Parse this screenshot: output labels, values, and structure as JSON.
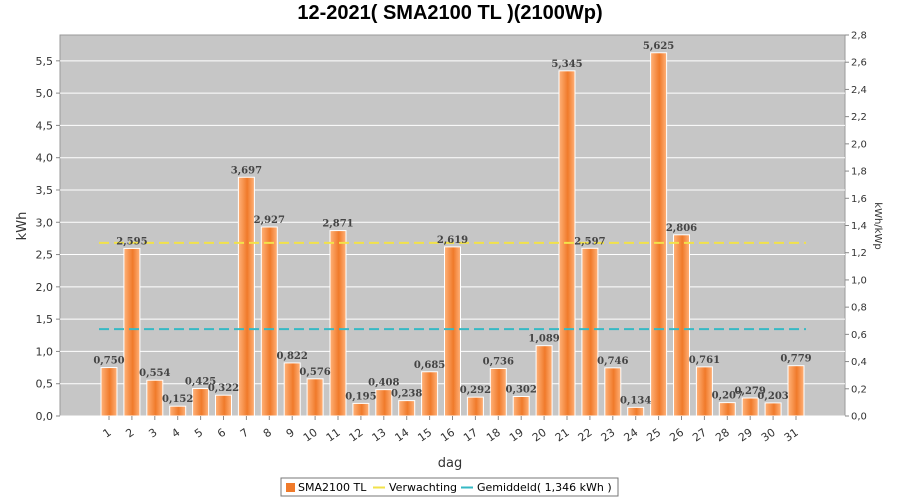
{
  "chart_data": {
    "type": "bar",
    "title": "12-2021( SMA2100 TL )(2100Wp)",
    "xlabel": "dag",
    "ylabel": "kWh",
    "y2label": "kWh/kWp",
    "ylim": [
      0,
      5.9
    ],
    "y2lim": [
      0,
      2.8
    ],
    "yticks": [
      "0,0",
      "0,5",
      "1,0",
      "1,5",
      "2,0",
      "2,5",
      "3,0",
      "3,5",
      "4,0",
      "4,5",
      "5,0",
      "5,5"
    ],
    "y2ticks": [
      "0,0",
      "0,2",
      "0,4",
      "0,6",
      "0,8",
      "1,0",
      "1,2",
      "1,4",
      "1,6",
      "1,8",
      "2,0",
      "2,2",
      "2,4",
      "2,6",
      "2,8"
    ],
    "categories": [
      "1",
      "2",
      "3",
      "4",
      "5",
      "6",
      "7",
      "8",
      "9",
      "10",
      "11",
      "12",
      "13",
      "14",
      "15",
      "16",
      "17",
      "18",
      "19",
      "20",
      "21",
      "22",
      "23",
      "24",
      "25",
      "26",
      "27",
      "28",
      "29",
      "30",
      "31"
    ],
    "series": [
      {
        "name": "SMA2100 TL",
        "values": [
          0.75,
          2.595,
          0.554,
          0.152,
          0.425,
          0.322,
          3.697,
          2.927,
          0.822,
          0.576,
          2.871,
          0.195,
          0.408,
          0.238,
          0.685,
          2.619,
          0.292,
          0.736,
          0.302,
          1.089,
          5.345,
          2.597,
          0.746,
          0.134,
          5.625,
          2.806,
          0.761,
          0.207,
          0.279,
          0.203,
          0.779
        ],
        "labels": [
          "0,750",
          "2,595",
          "0,554",
          "0,152",
          "0,425",
          "0,322",
          "3,697",
          "2,927",
          "0,822",
          "0,576",
          "2,871",
          "0,195",
          "0,408",
          "0,238",
          "0,685",
          "2,619",
          "0,292",
          "0,736",
          "0,302",
          "1,089",
          "5,345",
          "2,597",
          "0,746",
          "0,134",
          "5,625",
          "2,806",
          "0,761",
          "0,207",
          "0,279",
          "0,203",
          "0,779"
        ]
      }
    ],
    "lines": [
      {
        "name": "Verwachting",
        "value": 2.68,
        "color": "#f2e24a"
      },
      {
        "name": "Gemiddeld( 1,346 kWh )",
        "value": 1.346,
        "color": "#36b9c4"
      }
    ],
    "legend": [
      "SMA2100 TL",
      "Verwachting",
      "Gemiddeld( 1,346 kWh )"
    ],
    "legend_position": "bottom",
    "grid": true
  },
  "colors": {
    "plot_background": "#c6c6c6",
    "bar_light": "#ffb27a",
    "bar_dark": "#f07a2a",
    "grid": "#ffffff"
  }
}
